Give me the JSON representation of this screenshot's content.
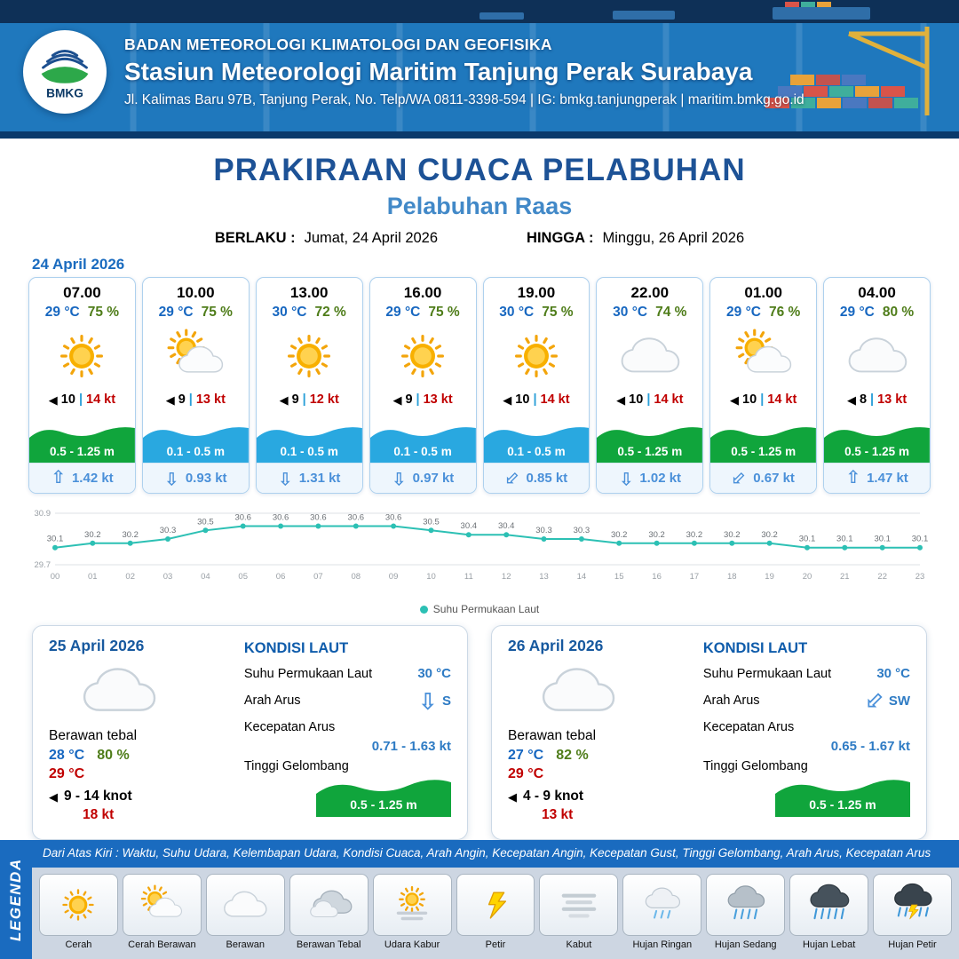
{
  "header": {
    "logo_text": "BMKG",
    "org": "BADAN METEOROLOGI KLIMATOLOGI DAN GEOFISIKA",
    "station": "Stasiun Meteorologi Maritim Tanjung Perak Surabaya",
    "address": "Jl. Kalimas Baru 97B, Tanjung Perak, No. Telp/WA 0811-3398-594 | IG: bmkg.tanjungperak | maritim.bmkg.go.id"
  },
  "title": {
    "main": "PRAKIRAAN CUACA PELABUHAN",
    "sub": "Pelabuhan Raas",
    "berlaku_label": "BERLAKU :",
    "berlaku_value": "Jumat, 24 April 2026",
    "hingga_label": "HINGGA :",
    "hingga_value": "Minggu, 26 April 2026"
  },
  "forecast_date": "24 April 2026",
  "icons": {
    "wind_arrow": "◀",
    "current_arrow": "⇧"
  },
  "hourly": [
    {
      "time": "07.00",
      "temp": "29 °C",
      "humidity": "75 %",
      "icon": "cerah",
      "wind": "10",
      "gust": "14 kt",
      "wave": "0.5 - 1.25 m",
      "wave_color": "green",
      "current_dir": "up",
      "current": "1.42 kt"
    },
    {
      "time": "10.00",
      "temp": "29 °C",
      "humidity": "75 %",
      "icon": "cerah-berawan",
      "wind": "9",
      "gust": "13 kt",
      "wave": "0.1 - 0.5 m",
      "wave_color": "blue",
      "current_dir": "down",
      "current": "0.93 kt"
    },
    {
      "time": "13.00",
      "temp": "30 °C",
      "humidity": "72 %",
      "icon": "cerah",
      "wind": "9",
      "gust": "12 kt",
      "wave": "0.1 - 0.5 m",
      "wave_color": "blue",
      "current_dir": "down",
      "current": "1.31 kt"
    },
    {
      "time": "16.00",
      "temp": "29 °C",
      "humidity": "75 %",
      "icon": "cerah",
      "wind": "9",
      "gust": "13 kt",
      "wave": "0.1 - 0.5 m",
      "wave_color": "blue",
      "current_dir": "down",
      "current": "0.97 kt"
    },
    {
      "time": "19.00",
      "temp": "30 °C",
      "humidity": "75 %",
      "icon": "cerah",
      "wind": "10",
      "gust": "14 kt",
      "wave": "0.1 - 0.5 m",
      "wave_color": "blue",
      "current_dir": "down-left",
      "current": "0.85 kt"
    },
    {
      "time": "22.00",
      "temp": "30 °C",
      "humidity": "74 %",
      "icon": "berawan",
      "wind": "10",
      "gust": "14 kt",
      "wave": "0.5 - 1.25 m",
      "wave_color": "green",
      "current_dir": "down",
      "current": "1.02 kt"
    },
    {
      "time": "01.00",
      "temp": "29 °C",
      "humidity": "76 %",
      "icon": "cerah-berawan",
      "wind": "10",
      "gust": "14 kt",
      "wave": "0.5 - 1.25 m",
      "wave_color": "green",
      "current_dir": "down-left",
      "current": "0.67 kt"
    },
    {
      "time": "04.00",
      "temp": "29 °C",
      "humidity": "80 %",
      "icon": "berawan",
      "wind": "8",
      "gust": "13 kt",
      "wave": "0.5 - 1.25 m",
      "wave_color": "green",
      "current_dir": "up",
      "current": "1.47 kt"
    }
  ],
  "chart_data": {
    "type": "line",
    "title": "Suhu Permukaan Laut",
    "x": [
      "00",
      "01",
      "02",
      "03",
      "04",
      "05",
      "06",
      "07",
      "08",
      "09",
      "10",
      "11",
      "12",
      "13",
      "14",
      "15",
      "16",
      "17",
      "18",
      "19",
      "20",
      "21",
      "22",
      "23"
    ],
    "values": [
      30.1,
      30.2,
      30.2,
      30.3,
      30.5,
      30.6,
      30.6,
      30.6,
      30.6,
      30.6,
      30.5,
      30.4,
      30.4,
      30.3,
      30.3,
      30.2,
      30.2,
      30.2,
      30.2,
      30.2,
      30.1,
      30.1,
      30.1,
      30.1
    ],
    "ylim": [
      29.7,
      30.9
    ],
    "line_color": "#2cc0b4",
    "legend": "Suhu Permukaan Laut",
    "legend_position": "bottom",
    "grid": true
  },
  "daily": [
    {
      "date": "25 April 2026",
      "icon": "berawan",
      "condition": "Berawan tebal",
      "temp_min": "28 °C",
      "humidity": "80 %",
      "temp_max": "29 °C",
      "wind": "9  - 14 knot",
      "gust": "18 kt",
      "sea": {
        "title": "KONDISI LAUT",
        "sst_label": "Suhu Permukaan Laut",
        "sst": "30 °C",
        "arus_label": "Arah Arus",
        "arus_dir": "down",
        "arus_dir_label": "S",
        "kec_label": "Kecepatan Arus",
        "kec": "0.71  - 1.63 kt",
        "gel_label": "Tinggi Gelombang",
        "gel": "0.5 - 1.25 m"
      }
    },
    {
      "date": "26 April 2026",
      "icon": "berawan",
      "condition": "Berawan tebal",
      "temp_min": "27 °C",
      "humidity": "82 %",
      "temp_max": "29 °C",
      "wind": "4  - 9 knot",
      "gust": "13 kt",
      "sea": {
        "title": "KONDISI LAUT",
        "sst_label": "Suhu Permukaan Laut",
        "sst": "30 °C",
        "arus_label": "Arah Arus",
        "arus_dir": "down-left",
        "arus_dir_label": "SW",
        "kec_label": "Kecepatan Arus",
        "kec": "0.65  - 1.67 kt",
        "gel_label": "Tinggi Gelombang",
        "gel": "0.5 - 1.25 m"
      }
    }
  ],
  "legend": {
    "title": "LEGENDA",
    "description": "Dari Atas Kiri : Waktu, Suhu Udara, Kelembapan Udara, Kondisi Cuaca, Arah Angin, Kecepatan Angin, Kecepatan Gust, Tinggi Gelombang, Arah Arus, Kecepatan Arus",
    "items": [
      {
        "icon": "cerah",
        "label": "Cerah"
      },
      {
        "icon": "cerah-berawan",
        "label": "Cerah Berawan"
      },
      {
        "icon": "berawan",
        "label": "Berawan"
      },
      {
        "icon": "berawan-tebal",
        "label": "Berawan Tebal"
      },
      {
        "icon": "udara-kabur",
        "label": "Udara Kabur"
      },
      {
        "icon": "petir",
        "label": "Petir"
      },
      {
        "icon": "kabut",
        "label": "Kabut"
      },
      {
        "icon": "hujan-ringan",
        "label": "Hujan Ringan"
      },
      {
        "icon": "hujan-sedang",
        "label": "Hujan Sedang"
      },
      {
        "icon": "hujan-lebat",
        "label": "Hujan Lebat"
      },
      {
        "icon": "hujan-petir",
        "label": "Hujan Petir"
      }
    ]
  }
}
